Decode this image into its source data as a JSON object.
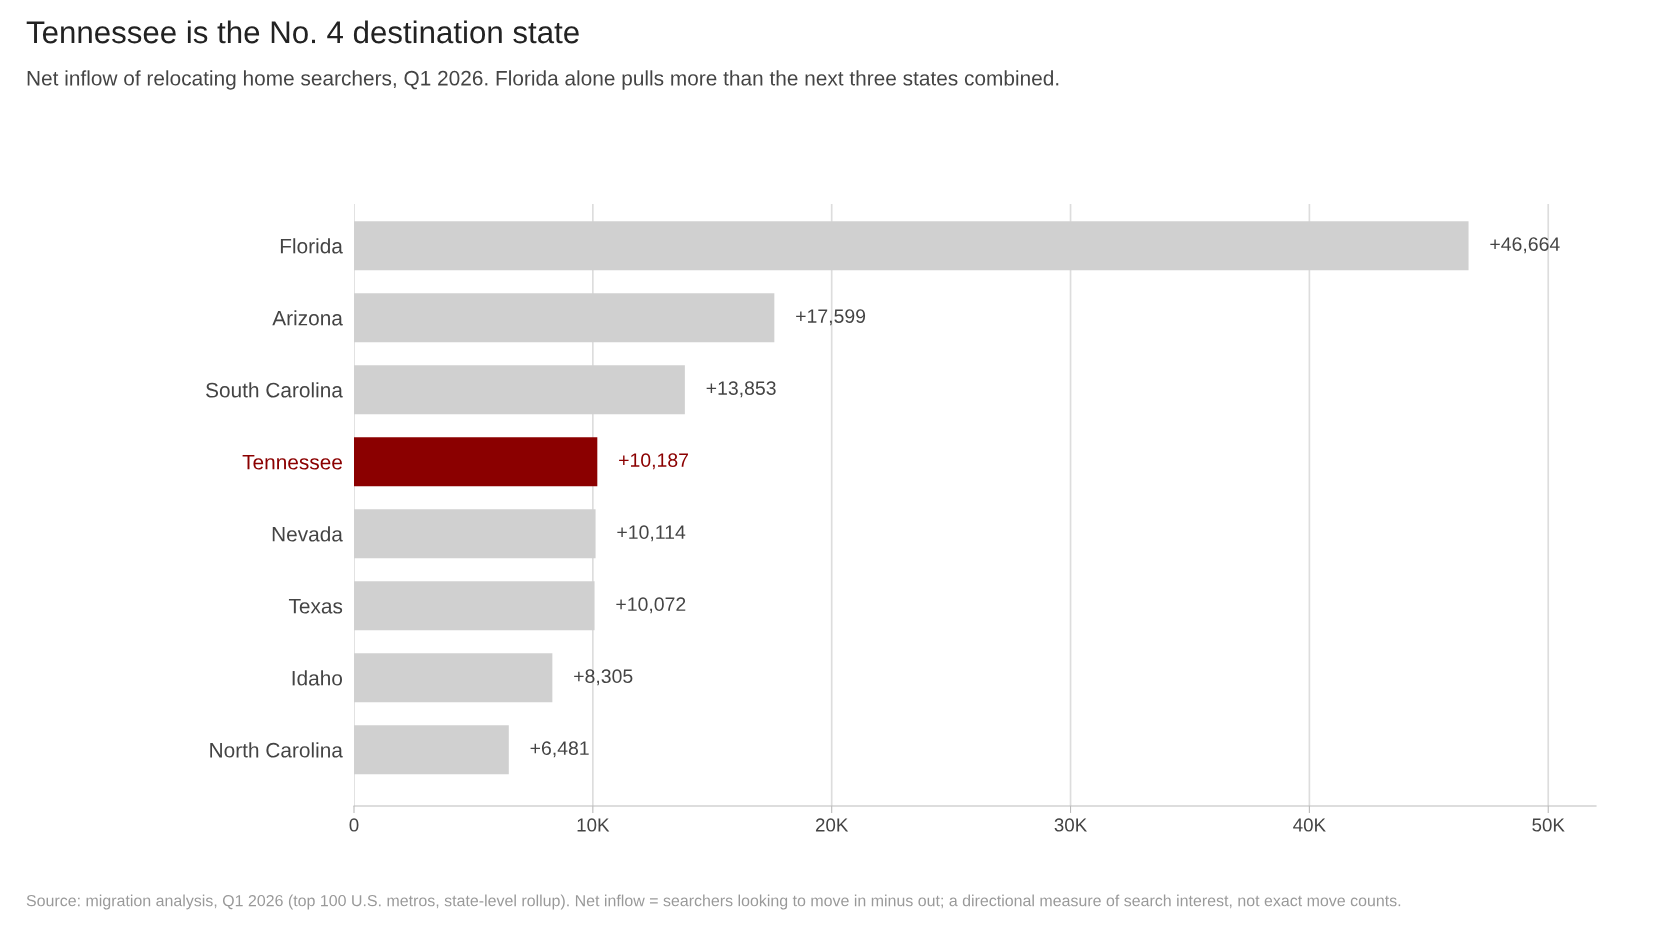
{
  "chart_data": {
    "type": "bar",
    "orientation": "horizontal",
    "title": "Tennessee is the No. 4 destination state",
    "subtitle": "Net inflow of relocating home searchers, Q1 2026. Florida alone pulls more than the next three states combined.",
    "categories": [
      "Florida",
      "Arizona",
      "South Carolina",
      "Tennessee",
      "Nevada",
      "Texas",
      "Idaho",
      "North Carolina"
    ],
    "values": [
      46664,
      17599,
      13853,
      10187,
      10114,
      10072,
      8305,
      6481
    ],
    "colors": [
      "#d0d0d0",
      "#d0d0d0",
      "#d0d0d0",
      "#8b0000",
      "#d0d0d0",
      "#d0d0d0",
      "#d0d0d0",
      "#d0d0d0"
    ],
    "value_labels": [
      "+46,664",
      "+17,599",
      "+13,853",
      "+10,187",
      "+10,114",
      "+10,072",
      "+8,305",
      "+6,481"
    ],
    "xlim": [
      0,
      52000
    ],
    "xticks": [
      0,
      {
        "value": 10000,
        "label": "10K"
      },
      {
        "value": 20000,
        "label": "20K"
      },
      {
        "value": 30000,
        "label": "30K"
      },
      {
        "value": 40000,
        "label": "40K"
      },
      {
        "value": 50000,
        "label": "50K"
      }
    ],
    "grid": "x",
    "annotations": [
      "Source: migration analysis, Q1 2026 (top 100 U.S. metros, state-level rollup). Net inflow = searchers looking to move in minus out; a directional measure of search interest, not exact move counts."
    ]
  }
}
